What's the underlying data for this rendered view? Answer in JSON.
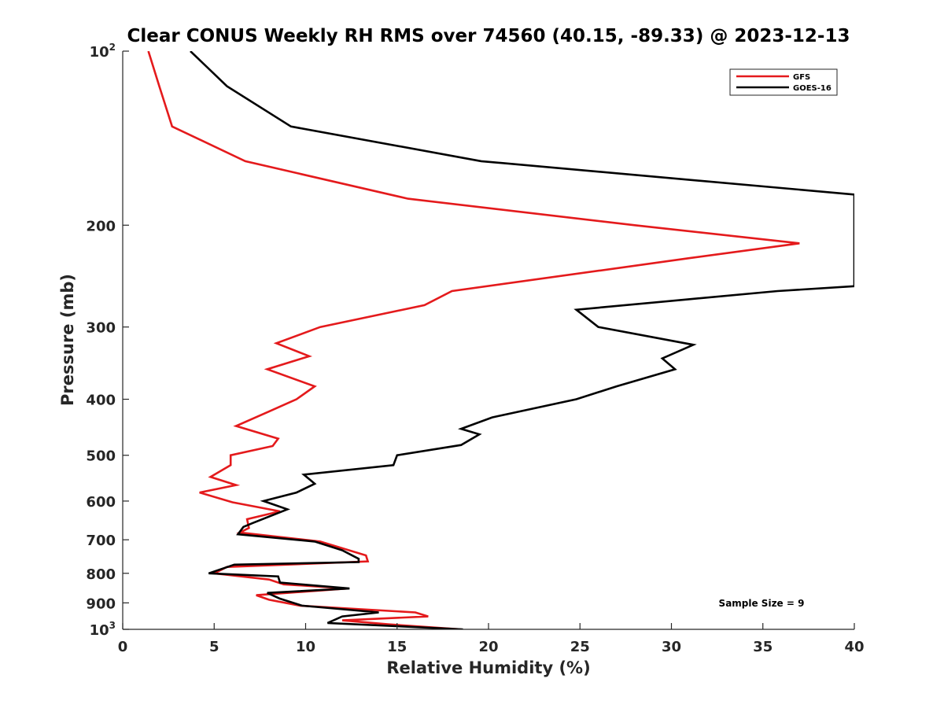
{
  "chart_data": {
    "type": "line",
    "title": "Clear CONUS Weekly RH RMS over 74560 (40.15, -89.33) @ 2023-12-13",
    "xlabel": "Relative Humidity (%)",
    "ylabel": "Pressure (mb)",
    "xlim": [
      0,
      40
    ],
    "ylim": [
      100,
      1000
    ],
    "y_scale": "log",
    "y_reversed": true,
    "x_ticks": [
      0,
      5,
      10,
      15,
      20,
      25,
      30,
      35,
      40
    ],
    "y_ticks": [
      {
        "value": 100,
        "base": "10",
        "exp": "2"
      },
      {
        "value": 200,
        "label": "200"
      },
      {
        "value": 300,
        "label": "300"
      },
      {
        "value": 400,
        "label": "400"
      },
      {
        "value": 500,
        "label": "500"
      },
      {
        "value": 600,
        "label": "600"
      },
      {
        "value": 700,
        "label": "700"
      },
      {
        "value": 800,
        "label": "800"
      },
      {
        "value": 900,
        "label": "900"
      },
      {
        "value": 1000,
        "base": "10",
        "exp": "3"
      }
    ],
    "grid": false,
    "legend_position": "top-right",
    "annotation": "Sample Size = 9",
    "series": [
      {
        "name": "GFS",
        "color": "#e41a1c",
        "points": [
          [
            1.4,
            100
          ],
          [
            2.0,
            115
          ],
          [
            2.7,
            135
          ],
          [
            6.7,
            155
          ],
          [
            15.6,
            180
          ],
          [
            28.0,
            200
          ],
          [
            37.0,
            215
          ],
          [
            31.0,
            228
          ],
          [
            18.0,
            260
          ],
          [
            16.5,
            275
          ],
          [
            10.8,
            300
          ],
          [
            8.4,
            320
          ],
          [
            10.2,
            337
          ],
          [
            7.9,
            355
          ],
          [
            10.5,
            380
          ],
          [
            9.5,
            400
          ],
          [
            8.0,
            420
          ],
          [
            6.2,
            445
          ],
          [
            8.5,
            468
          ],
          [
            8.2,
            482
          ],
          [
            5.9,
            500
          ],
          [
            5.9,
            520
          ],
          [
            4.8,
            545
          ],
          [
            6.2,
            563
          ],
          [
            4.2,
            580
          ],
          [
            6.0,
            603
          ],
          [
            8.6,
            625
          ],
          [
            6.8,
            645
          ],
          [
            6.9,
            668
          ],
          [
            6.4,
            680
          ],
          [
            10.8,
            705
          ],
          [
            13.3,
            745
          ],
          [
            13.4,
            763
          ],
          [
            5.7,
            780
          ],
          [
            5.0,
            800
          ],
          [
            8.0,
            820
          ],
          [
            8.8,
            836
          ],
          [
            12.3,
            850
          ],
          [
            7.3,
            873
          ],
          [
            8.0,
            889
          ],
          [
            9.7,
            910
          ],
          [
            16.0,
            935
          ],
          [
            16.7,
            950
          ],
          [
            12.0,
            965
          ],
          [
            14.5,
            980
          ],
          [
            18.5,
            1000
          ]
        ]
      },
      {
        "name": "GOES-16",
        "color": "#000000",
        "points": [
          [
            3.7,
            100
          ],
          [
            5.7,
            115
          ],
          [
            9.2,
            135
          ],
          [
            19.6,
            155
          ],
          [
            40.0,
            177
          ],
          [
            40.0,
            255
          ],
          [
            35.8,
            260
          ],
          [
            24.8,
            280
          ],
          [
            26.0,
            300
          ],
          [
            31.2,
            322
          ],
          [
            29.5,
            340
          ],
          [
            30.2,
            355
          ],
          [
            27.0,
            380
          ],
          [
            24.8,
            400
          ],
          [
            20.2,
            430
          ],
          [
            18.5,
            450
          ],
          [
            19.5,
            460
          ],
          [
            18.5,
            480
          ],
          [
            15.0,
            500
          ],
          [
            14.8,
            520
          ],
          [
            9.9,
            540
          ],
          [
            10.5,
            560
          ],
          [
            9.5,
            580
          ],
          [
            7.7,
            600
          ],
          [
            9.0,
            620
          ],
          [
            7.1,
            655
          ],
          [
            6.6,
            665
          ],
          [
            6.3,
            685
          ],
          [
            10.5,
            705
          ],
          [
            12.0,
            730
          ],
          [
            12.9,
            755
          ],
          [
            12.9,
            765
          ],
          [
            6.1,
            773
          ],
          [
            4.7,
            800
          ],
          [
            8.5,
            810
          ],
          [
            8.6,
            830
          ],
          [
            12.4,
            850
          ],
          [
            7.9,
            865
          ],
          [
            8.6,
            885
          ],
          [
            9.8,
            910
          ],
          [
            14.0,
            935
          ],
          [
            12.0,
            950
          ],
          [
            11.2,
            975
          ],
          [
            18.6,
            1000
          ]
        ]
      }
    ]
  }
}
